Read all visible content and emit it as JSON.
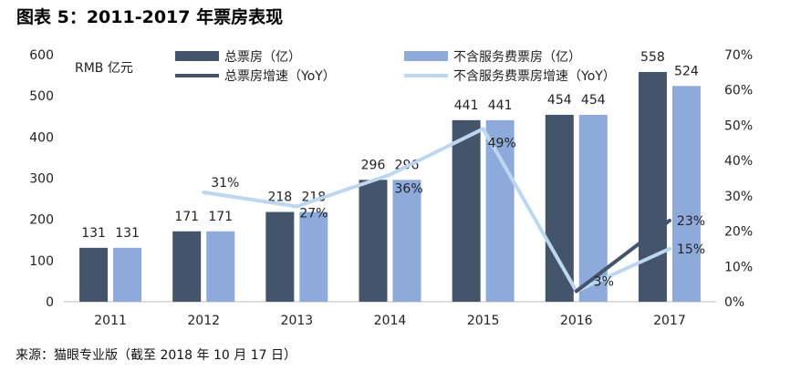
{
  "title": "图表 5：2011-2017 年票房表现",
  "source": "来源：猫眼专业版（截至 2018 年 10 月 17 日）",
  "chart_data": {
    "type": "bar",
    "categories": [
      "2011",
      "2012",
      "2013",
      "2014",
      "2015",
      "2016",
      "2017"
    ],
    "ylabel": "RMB 亿元",
    "ylim": [
      0,
      600
    ],
    "yticks": [
      "0",
      "100",
      "200",
      "300",
      "400",
      "500",
      "600"
    ],
    "y2lim": [
      0,
      0.7
    ],
    "y2ticks": [
      "0%",
      "10%",
      "20%",
      "30%",
      "40%",
      "50%",
      "60%",
      "70%"
    ],
    "legend_position": "top",
    "series": [
      {
        "name": "总票房（亿）",
        "kind": "bar",
        "axis": "left",
        "color": "#44546a",
        "values": [
          131,
          171,
          218,
          296,
          441,
          454,
          558
        ],
        "labels": [
          "131",
          "171",
          "218",
          "296",
          "441",
          "454",
          "558"
        ]
      },
      {
        "name": "不含服务费票房（亿）",
        "kind": "bar",
        "axis": "left",
        "color": "#8eaadb",
        "values": [
          131,
          171,
          218,
          296,
          441,
          454,
          524
        ],
        "labels": [
          "131",
          "171",
          "218",
          "296",
          "441",
          "454",
          "524"
        ]
      },
      {
        "name": "总票房增速（YoY）",
        "kind": "line",
        "axis": "right",
        "color": "#44546a",
        "values": [
          null,
          null,
          null,
          null,
          null,
          0.03,
          0.23
        ],
        "labels": [
          null,
          null,
          null,
          null,
          null,
          null,
          "23%"
        ]
      },
      {
        "name": "不含服务费票房增速（YoY）",
        "kind": "line",
        "axis": "right",
        "color": "#bdd7ee",
        "values": [
          null,
          0.31,
          0.27,
          0.36,
          0.49,
          0.03,
          0.15
        ],
        "labels": [
          null,
          "31%",
          "27%",
          "36%",
          "49%",
          "3%",
          "15%"
        ]
      }
    ]
  }
}
